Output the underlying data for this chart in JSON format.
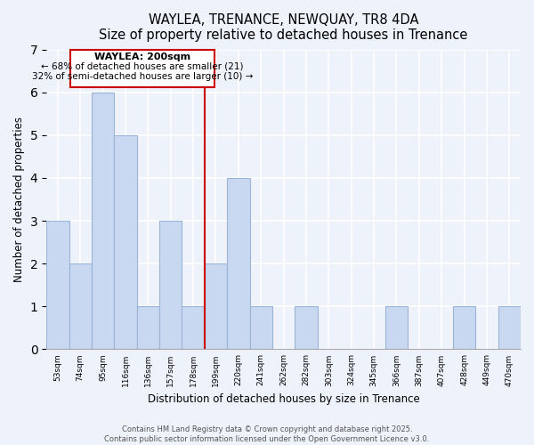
{
  "title": "WAYLEA, TRENANCE, NEWQUAY, TR8 4DA",
  "subtitle": "Size of property relative to detached houses in Trenance",
  "xlabel": "Distribution of detached houses by size in Trenance",
  "ylabel": "Number of detached properties",
  "bin_labels": [
    "53sqm",
    "74sqm",
    "95sqm",
    "116sqm",
    "136sqm",
    "157sqm",
    "178sqm",
    "199sqm",
    "220sqm",
    "241sqm",
    "262sqm",
    "282sqm",
    "303sqm",
    "324sqm",
    "345sqm",
    "366sqm",
    "387sqm",
    "407sqm",
    "428sqm",
    "449sqm",
    "470sqm"
  ],
  "counts": [
    3,
    2,
    6,
    5,
    1,
    3,
    1,
    2,
    4,
    1,
    0,
    1,
    0,
    0,
    0,
    1,
    0,
    0,
    1,
    0,
    1
  ],
  "bar_color": "#c8d8f0",
  "bar_edge_color": "#9ab4d8",
  "annotation_box_color": "#ffffff",
  "annotation_border_color": "#cc0000",
  "annotation_title": "WAYLEA: 200sqm",
  "annotation_line1": "← 68% of detached houses are smaller (21)",
  "annotation_line2": "32% of semi-detached houses are larger (10) →",
  "ylim": [
    0,
    7
  ],
  "yticks": [
    0,
    1,
    2,
    3,
    4,
    5,
    6,
    7
  ],
  "background_color": "#eef2fa",
  "grid_color": "#ffffff",
  "footer_line1": "Contains HM Land Registry data © Crown copyright and database right 2025.",
  "footer_line2": "Contains public sector information licensed under the Open Government Licence v3.0.",
  "red_line_x": 7
}
